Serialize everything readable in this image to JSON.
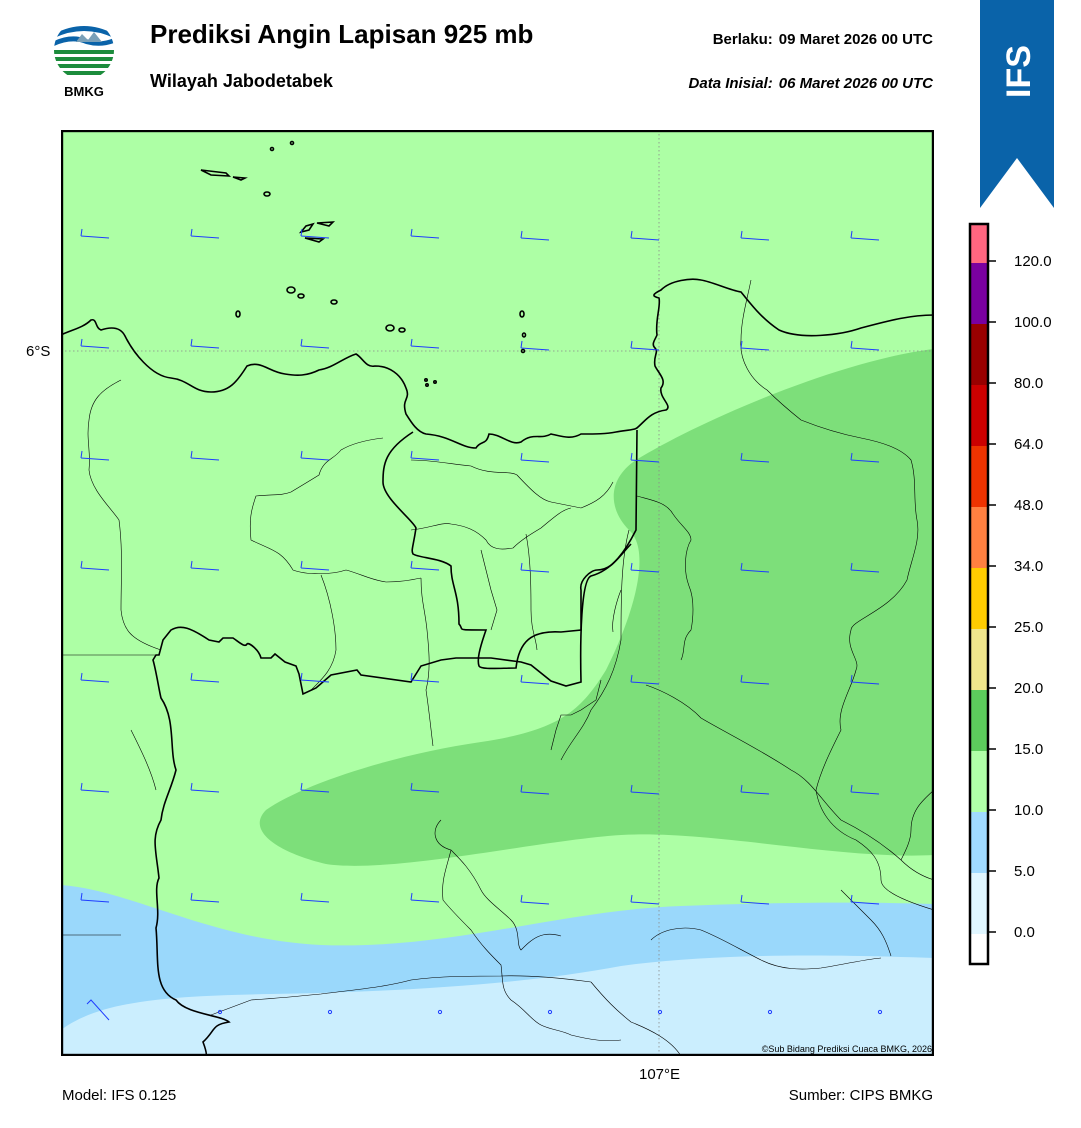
{
  "header": {
    "logo_text": "BMKG",
    "title": "Prediksi Angin Lapisan 925 mb",
    "region": "Wilayah Jabodetabek",
    "valid_label": "Berlaku:",
    "valid_time": "09 Maret 2026 00 UTC",
    "init_label": "Data Inisial:",
    "init_time": "06 Maret 2026 00 UTC",
    "model_badge": "IFS"
  },
  "map": {
    "lat_label": "6°S",
    "lon_label": "107°E",
    "credit": "©Sub Bidang Prediksi Cuaca BMKG, 2026"
  },
  "footer": {
    "model": "Model: IFS 0.125",
    "source": "Sumber: CIPS BMKG"
  },
  "legend": {
    "ticks": [
      "0.0",
      "5.0",
      "10.0",
      "15.0",
      "20.0",
      "25.0",
      "34.0",
      "48.0",
      "64.0",
      "80.0",
      "100.0",
      "120.0"
    ],
    "colors": [
      "#ffffff",
      "#e0f6ff",
      "#a0daff",
      "#b0ffa8",
      "#5ccc5c",
      "#f0e68c",
      "#ffcc00",
      "#ff8040",
      "#ee3300",
      "#cc0000",
      "#990000",
      "#7a00a0",
      "#ff6680"
    ]
  },
  "colors": {
    "brand_blue": "#0a63a9",
    "wind_barb": "#1e3cff",
    "speed_10_15": "#adffa5",
    "speed_15_20": "#7ddf7a",
    "speed_5_10": "#9ad8fb",
    "speed_0_5": "#cbeefe"
  }
}
